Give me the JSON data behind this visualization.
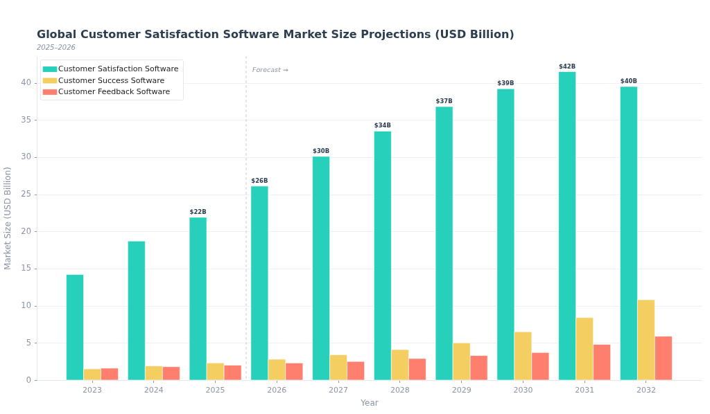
{
  "chart_data": {
    "type": "bar",
    "title": "Global Customer Satisfaction Software Market Size Projections (USD Billion)",
    "subtitle": "2025–2026",
    "xlabel": "Year",
    "ylabel": "Market Size (USD Billion)",
    "categories": [
      "2023",
      "2024",
      "2025",
      "2026",
      "2027",
      "2028",
      "2029",
      "2030",
      "2031",
      "2032"
    ],
    "series": [
      {
        "name": "Customer Satisfaction Software",
        "color": "#26d0ba",
        "values": [
          14.2,
          18.7,
          21.9,
          26.1,
          30.1,
          33.5,
          36.8,
          39.2,
          41.5,
          39.5
        ],
        "value_labels": [
          null,
          null,
          "$22B",
          "$26B",
          "$30B",
          "$34B",
          "$37B",
          "$39B",
          "$42B",
          "$40B"
        ]
      },
      {
        "name": "Customer Success Software",
        "color": "#f4ce60",
        "values": [
          1.5,
          1.9,
          2.3,
          2.8,
          3.4,
          4.1,
          5.0,
          6.5,
          8.4,
          10.8
        ]
      },
      {
        "name": "Customer Feedback Software",
        "color": "#ff7f6f",
        "values": [
          1.6,
          1.8,
          2.0,
          2.3,
          2.5,
          2.9,
          3.3,
          3.7,
          4.8,
          5.9
        ]
      }
    ],
    "ylim": [
      0,
      43.6
    ],
    "yticks": [
      0,
      5,
      10,
      15,
      20,
      25,
      30,
      35,
      40
    ],
    "grid": "y",
    "legend": "top left",
    "ref_lines": [
      {
        "axis": "x",
        "value": "2026",
        "label": "Forecast →",
        "color": "#c8ccd4",
        "line_style": "dashed"
      }
    ]
  }
}
